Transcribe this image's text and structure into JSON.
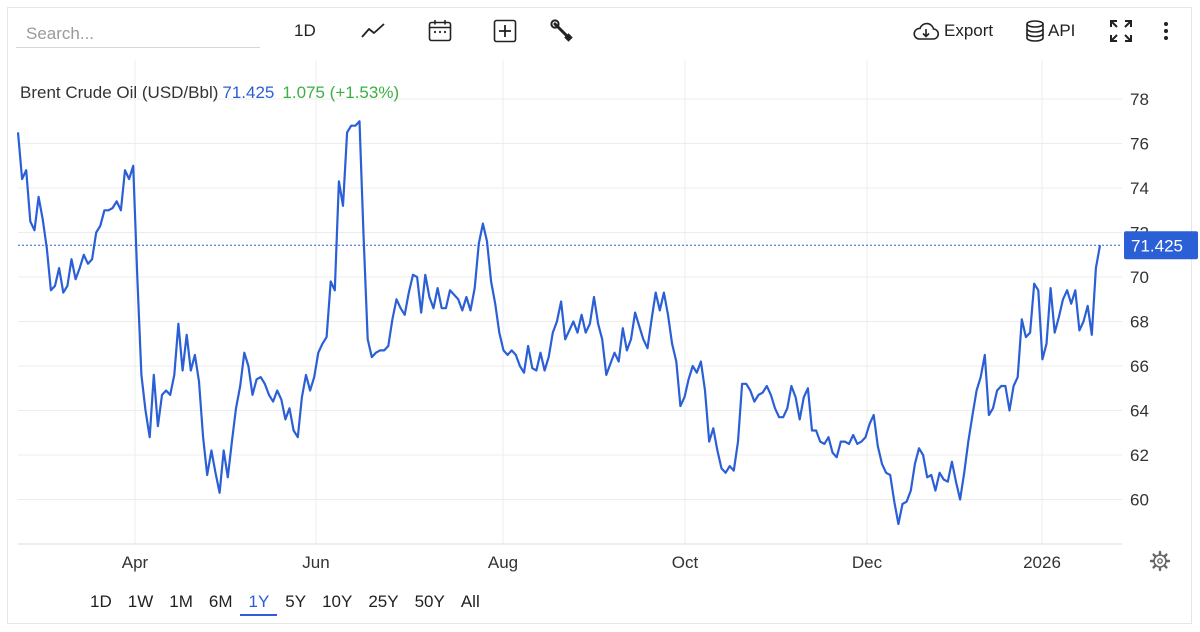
{
  "toolbar": {
    "search_placeholder": "Search...",
    "interval_label": "1D",
    "export_label": "Export",
    "api_label": "API",
    "icons": [
      "line-chart-icon",
      "calendar-icon",
      "add-icon",
      "wrench-icon",
      "cloud-download-icon",
      "database-icon",
      "fullscreen-icon",
      "more-vertical-icon"
    ]
  },
  "legend": {
    "name": "Brent Crude Oil (USD/Bbl)",
    "price": "71.425",
    "change": "1.075 (+1.53%)"
  },
  "ranges": [
    "1D",
    "1W",
    "1M",
    "6M",
    "1Y",
    "5Y",
    "10Y",
    "25Y",
    "50Y",
    "All"
  ],
  "active_range": "1Y",
  "colors": {
    "line": "#2a5fd6",
    "positive": "#3cb043",
    "grid": "#ececec"
  },
  "chart_data": {
    "type": "line",
    "title": "Brent Crude Oil (USD/Bbl)",
    "last_value": 71.425,
    "last_value_label": "71.425",
    "ylim": [
      58,
      80
    ],
    "y_ticks": [
      60,
      62,
      64,
      66,
      68,
      70,
      72,
      74,
      76,
      78
    ],
    "y_tick_labels": [
      "60",
      "62",
      "64",
      "66",
      "68",
      "70",
      "72",
      "74",
      "76",
      "78"
    ],
    "x_ticks": [
      "Apr",
      "Jun",
      "Aug",
      "Oct",
      "Dec",
      "2026"
    ],
    "grid": true,
    "series": [
      {
        "values": [
          76.5,
          74.4,
          74.8,
          72.5,
          72.1,
          73.6,
          72.6,
          71.3,
          69.4,
          69.6,
          70.4,
          69.3,
          69.6,
          70.8,
          69.9,
          70.4,
          71.0,
          70.6,
          70.8,
          72.0,
          72.3,
          73.0,
          73.0,
          73.1,
          73.4,
          73.0,
          74.8,
          74.4,
          75.0,
          70.0,
          65.6,
          64.0,
          62.8,
          65.6,
          63.3,
          64.7,
          64.9,
          64.7,
          65.6,
          67.9,
          65.8,
          67.4,
          65.8,
          66.5,
          65.3,
          62.8,
          61.1,
          62.2,
          61.2,
          60.3,
          62.2,
          61.0,
          62.6,
          64.1,
          65.1,
          66.6,
          66.0,
          64.7,
          65.4,
          65.5,
          65.2,
          64.7,
          64.4,
          64.9,
          64.5,
          63.6,
          64.1,
          63.1,
          62.8,
          64.6,
          65.6,
          64.9,
          65.5,
          66.6,
          67.0,
          67.3,
          69.8,
          69.4,
          74.3,
          73.2,
          76.5,
          76.8,
          76.8,
          77.0,
          71.8,
          67.2,
          66.4,
          66.6,
          66.7,
          66.7,
          66.9,
          68.1,
          69.0,
          68.6,
          68.3,
          69.3,
          70.1,
          70.0,
          68.4,
          70.1,
          69.1,
          68.6,
          69.5,
          68.6,
          68.6,
          69.4,
          69.2,
          69.0,
          68.5,
          69.1,
          68.5,
          69.5,
          71.5,
          72.4,
          71.6,
          69.8,
          68.8,
          67.5,
          66.7,
          66.5,
          66.7,
          66.5,
          66.0,
          65.7,
          66.9,
          65.9,
          65.8,
          66.6,
          65.8,
          66.4,
          67.5,
          68.0,
          68.9,
          67.2,
          67.6,
          68.0,
          67.5,
          68.3,
          67.5,
          67.9,
          69.1,
          67.9,
          67.2,
          65.6,
          66.1,
          66.6,
          66.2,
          67.7,
          66.7,
          67.2,
          68.4,
          67.8,
          67.2,
          66.8,
          68.1,
          69.3,
          68.5,
          69.3,
          68.3,
          67.0,
          66.2,
          64.2,
          64.6,
          65.4,
          66.0,
          65.7,
          66.2,
          64.9,
          62.6,
          63.2,
          62.2,
          61.4,
          61.2,
          61.5,
          61.3,
          62.6,
          65.2,
          65.2,
          64.9,
          64.4,
          64.7,
          64.8,
          65.1,
          64.7,
          64.1,
          63.7,
          63.7,
          64.1,
          65.1,
          64.6,
          63.6,
          64.6,
          65.0,
          63.1,
          63.1,
          62.6,
          62.5,
          62.8,
          62.1,
          61.9,
          62.6,
          62.6,
          62.5,
          62.9,
          62.5,
          62.6,
          62.8,
          63.4,
          63.8,
          62.4,
          61.6,
          61.2,
          61.1,
          59.9,
          58.9,
          59.8,
          59.9,
          60.4,
          61.6,
          62.3,
          62.0,
          61.0,
          61.1,
          60.4,
          61.2,
          60.9,
          60.8,
          61.7,
          60.8,
          60.0,
          61.2,
          62.6,
          63.8,
          64.9,
          65.5,
          66.5,
          63.8,
          64.1,
          64.9,
          65.1,
          65.1,
          64.0,
          65.1,
          65.5,
          68.1,
          67.3,
          67.5,
          69.7,
          69.4,
          66.3,
          67.0,
          69.5,
          67.5,
          68.2,
          69.0,
          69.4,
          68.8,
          69.4,
          67.6,
          68.0,
          68.7,
          67.4,
          70.4,
          71.425
        ]
      }
    ]
  }
}
